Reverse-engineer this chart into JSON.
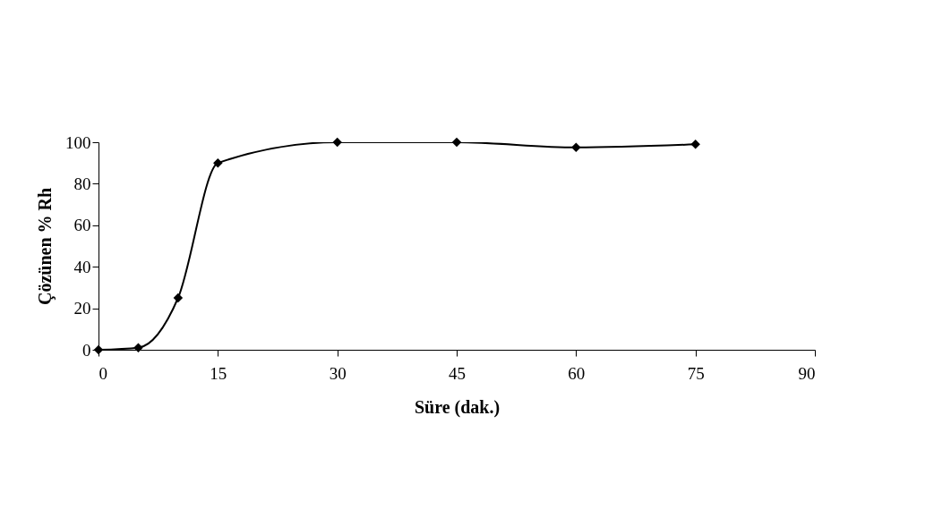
{
  "chart_data": {
    "type": "line",
    "xlabel": "Süre (dak.)",
    "ylabel": "Çözünen % Rh",
    "x": [
      0,
      5,
      10,
      15,
      30,
      45,
      60,
      75
    ],
    "series": [
      {
        "color": "#000000",
        "values": [
          0,
          1,
          25,
          90,
          100,
          100,
          97.5,
          99
        ]
      }
    ],
    "xlim": [
      0,
      90
    ],
    "xticks": [
      0,
      15,
      30,
      45,
      60,
      75,
      90
    ],
    "ylim": [
      0,
      100
    ],
    "yticks": [
      0,
      20,
      40,
      60,
      80,
      100
    ],
    "marker": "diamond",
    "line_style": "solid"
  }
}
